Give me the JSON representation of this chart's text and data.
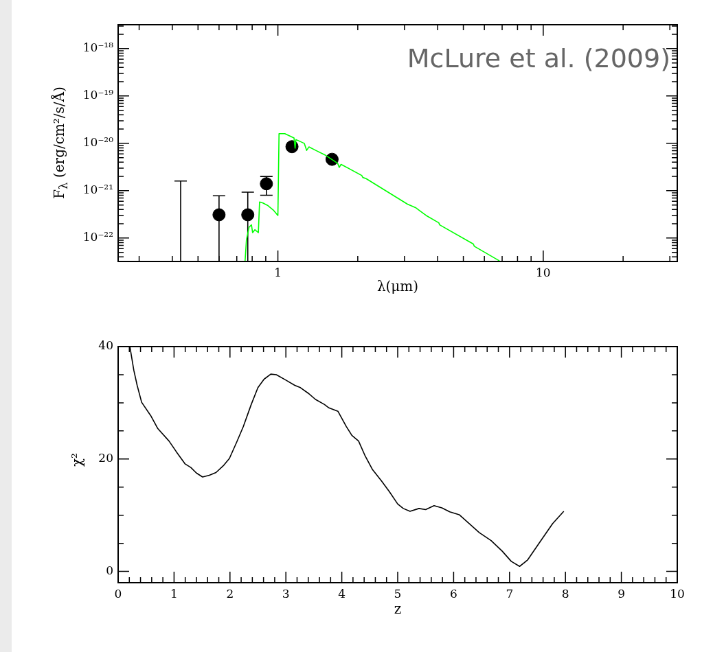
{
  "chart_data": [
    {
      "type": "scatter",
      "xlabel": "λ(μm)",
      "ylabel": "F$_{λ}$ (erg/cm²/s/Å)",
      "annotations": [
        "McLure et al. (2009)"
      ],
      "log": "xy",
      "grid": false,
      "legend": false,
      "xlim": [
        0.25,
        32
      ],
      "ylim": [
        3.2e-23,
        3.2e-18
      ],
      "xticks": [
        {
          "value": 0.3,
          "label": null
        },
        {
          "value": 0.4,
          "label": null
        },
        {
          "value": 0.5,
          "label": null
        },
        {
          "value": 0.6,
          "label": null
        },
        {
          "value": 0.7,
          "label": null
        },
        {
          "value": 0.8,
          "label": null
        },
        {
          "value": 0.9,
          "label": null
        },
        1,
        {
          "value": 2,
          "label": null
        },
        {
          "value": 3,
          "label": null
        },
        {
          "value": 4,
          "label": null
        },
        {
          "value": 5,
          "label": null
        },
        {
          "value": 6,
          "label": null
        },
        {
          "value": 7,
          "label": null
        },
        {
          "value": 8,
          "label": null
        },
        {
          "value": 9,
          "label": null
        },
        10,
        {
          "value": 20,
          "label": null
        },
        {
          "value": 30,
          "label": null
        }
      ],
      "yticks": [
        {
          "value": 4e-23,
          "label": null
        },
        {
          "value": 5e-23,
          "label": null
        },
        {
          "value": 6e-23,
          "label": null
        },
        {
          "value": 7e-23,
          "label": null
        },
        {
          "value": 8e-23,
          "label": null
        },
        {
          "value": 9e-23,
          "label": null
        },
        {
          "value": 1e-22,
          "label": "10⁻²²"
        },
        {
          "value": 2e-22,
          "label": null
        },
        {
          "value": 3e-22,
          "label": null
        },
        {
          "value": 4e-22,
          "label": null
        },
        {
          "value": 5e-22,
          "label": null
        },
        {
          "value": 6e-22,
          "label": null
        },
        {
          "value": 7e-22,
          "label": null
        },
        {
          "value": 8e-22,
          "label": null
        },
        {
          "value": 9e-22,
          "label": null
        },
        {
          "value": 1e-21,
          "label": "10⁻²¹"
        },
        {
          "value": 2e-21,
          "label": null
        },
        {
          "value": 3e-21,
          "label": null
        },
        {
          "value": 4e-21,
          "label": null
        },
        {
          "value": 5e-21,
          "label": null
        },
        {
          "value": 6e-21,
          "label": null
        },
        {
          "value": 7e-21,
          "label": null
        },
        {
          "value": 8e-21,
          "label": null
        },
        {
          "value": 9e-21,
          "label": null
        },
        {
          "value": 1e-20,
          "label": "10⁻²⁰"
        },
        {
          "value": 2e-20,
          "label": null
        },
        {
          "value": 3e-20,
          "label": null
        },
        {
          "value": 4e-20,
          "label": null
        },
        {
          "value": 5e-20,
          "label": null
        },
        {
          "value": 6e-20,
          "label": null
        },
        {
          "value": 7e-20,
          "label": null
        },
        {
          "value": 8e-20,
          "label": null
        },
        {
          "value": 9e-20,
          "label": null
        },
        {
          "value": 1e-19,
          "label": "10⁻¹⁹"
        },
        {
          "value": 2e-19,
          "label": null
        },
        {
          "value": 3e-19,
          "label": null
        },
        {
          "value": 4e-19,
          "label": null
        },
        {
          "value": 5e-19,
          "label": null
        },
        {
          "value": 6e-19,
          "label": null
        },
        {
          "value": 7e-19,
          "label": null
        },
        {
          "value": 8e-19,
          "label": null
        },
        {
          "value": 9e-19,
          "label": null
        },
        {
          "value": 1e-18,
          "label": "10⁻¹⁸"
        },
        {
          "value": 2e-18,
          "label": null
        },
        {
          "value": 3e-18,
          "label": null
        }
      ],
      "series": [
        {
          "type": "line",
          "color": "#00ff00",
          "marker": "none",
          "x": [
            0.752,
            0.761,
            0.779,
            0.795,
            0.803,
            0.819,
            0.844,
            0.853,
            0.878,
            0.914,
            0.961,
            1.0,
            1.01,
            1.062,
            1.15,
            1.161,
            1.17,
            1.257,
            1.283,
            1.309,
            1.389,
            1.504,
            1.679,
            1.703,
            1.73,
            2.07,
            2.09,
            2.15,
            3.08,
            3.3,
            3.44,
            3.62,
            4.04,
            4.07,
            5.45,
            5.5,
            6.84
          ],
          "values": [
            3.2e-23,
            9.1e-23,
            1.7e-22,
            1.9e-22,
            1.3e-22,
            1.5e-22,
            1.3e-22,
            5.8e-22,
            5.5e-22,
            4.9e-22,
            3.9e-22,
            3e-22,
            1.6e-20,
            1.6e-20,
            1.3e-20,
            7.9e-21,
            1.2e-20,
            1e-20,
            7.1e-21,
            8.4e-21,
            7.1e-21,
            5.7e-21,
            3.8e-21,
            3.1e-21,
            3.6e-21,
            2.1e-21,
            1.9e-21,
            1.8e-21,
            5.2e-22,
            4.4e-22,
            3.7e-22,
            3e-22,
            2.1e-22,
            1.9e-22,
            7.5e-23,
            6.7e-23,
            3.3e-23
          ]
        },
        {
          "type": "scatter",
          "color": "#000000",
          "marker": "circle",
          "x": [
            0.6,
            0.77,
            0.905,
            1.13,
            1.6
          ],
          "values": [
            3.1e-22,
            3.1e-22,
            1.4e-21,
            8.5e-21,
            4.6e-21
          ],
          "errors": [
            [
              3.2e-23,
              7.8e-22
            ],
            [
              3.2e-23,
              9.3e-22
            ],
            [
              8e-22,
              2e-21
            ],
            null,
            null
          ]
        },
        {
          "type": "line",
          "color": "#000000",
          "marker": "none",
          "x": [
            0.43,
            0.43
          ],
          "values": [
            3.2e-23,
            1.6e-21
          ],
          "errors": [
            null,
            [
              1.6e-21,
              1.6e-21
            ]
          ]
        }
      ]
    },
    {
      "type": "line",
      "xlabel": "z",
      "ylabel": "χ²",
      "grid": false,
      "legend": false,
      "marker": "none",
      "color": "#000000",
      "xlim": [
        0,
        10
      ],
      "ylim": [
        -2,
        40
      ],
      "xticks": [
        0,
        {
          "value": 0.2,
          "label": null
        },
        {
          "value": 0.4,
          "label": null
        },
        {
          "value": 0.6,
          "label": null
        },
        {
          "value": 0.8,
          "label": null
        },
        1,
        {
          "value": 1.2,
          "label": null
        },
        {
          "value": 1.4,
          "label": null
        },
        {
          "value": 1.6,
          "label": null
        },
        {
          "value": 1.8,
          "label": null
        },
        2,
        {
          "value": 2.2,
          "label": null
        },
        {
          "value": 2.4,
          "label": null
        },
        {
          "value": 2.6,
          "label": null
        },
        {
          "value": 2.8,
          "label": null
        },
        3,
        {
          "value": 3.2,
          "label": null
        },
        {
          "value": 3.4,
          "label": null
        },
        {
          "value": 3.6,
          "label": null
        },
        {
          "value": 3.8,
          "label": null
        },
        4,
        {
          "value": 4.2,
          "label": null
        },
        {
          "value": 4.4,
          "label": null
        },
        {
          "value": 4.6,
          "label": null
        },
        {
          "value": 4.8,
          "label": null
        },
        5,
        {
          "value": 5.2,
          "label": null
        },
        {
          "value": 5.4,
          "label": null
        },
        {
          "value": 5.6,
          "label": null
        },
        {
          "value": 5.8,
          "label": null
        },
        6,
        {
          "value": 6.2,
          "label": null
        },
        {
          "value": 6.4,
          "label": null
        },
        {
          "value": 6.6,
          "label": null
        },
        {
          "value": 6.8,
          "label": null
        },
        7,
        {
          "value": 7.2,
          "label": null
        },
        {
          "value": 7.4,
          "label": null
        },
        {
          "value": 7.6,
          "label": null
        },
        {
          "value": 7.8,
          "label": null
        },
        8,
        {
          "value": 8.2,
          "label": null
        },
        {
          "value": 8.4,
          "label": null
        },
        {
          "value": 8.6,
          "label": null
        },
        {
          "value": 8.8,
          "label": null
        },
        9,
        {
          "value": 9.2,
          "label": null
        },
        {
          "value": 9.4,
          "label": null
        },
        {
          "value": 9.6,
          "label": null
        },
        {
          "value": 9.8,
          "label": null
        },
        10
      ],
      "yticks": [
        0,
        {
          "value": 5,
          "label": null
        },
        {
          "value": 10,
          "label": null
        },
        {
          "value": 15,
          "label": null
        },
        20,
        {
          "value": 25,
          "label": null
        },
        {
          "value": 30,
          "label": null
        },
        {
          "value": 35,
          "label": null
        },
        40
      ],
      "x": [
        0.21,
        0.28,
        0.34,
        0.42,
        0.59,
        0.71,
        0.91,
        1.04,
        1.2,
        1.3,
        1.4,
        1.51,
        1.63,
        1.75,
        1.89,
        1.99,
        2.12,
        2.24,
        2.38,
        2.5,
        2.61,
        2.73,
        2.83,
        2.99,
        3.16,
        3.26,
        3.4,
        3.53,
        3.69,
        3.77,
        3.93,
        4.08,
        4.18,
        4.3,
        4.42,
        4.55,
        4.71,
        4.85,
        5.0,
        5.1,
        5.22,
        5.38,
        5.5,
        5.65,
        5.79,
        5.93,
        6.1,
        6.46,
        6.67,
        6.87,
        7.03,
        7.18,
        7.32,
        7.52,
        7.77,
        7.97
      ],
      "values": [
        40,
        35.8,
        33.1,
        30.1,
        27.6,
        25.4,
        23.2,
        21.3,
        19.1,
        18.5,
        17.5,
        16.8,
        17.1,
        17.6,
        18.9,
        20.1,
        23.0,
        25.8,
        29.7,
        32.7,
        34.2,
        35.1,
        35.0,
        34.1,
        33.1,
        32.7,
        31.7,
        30.6,
        29.7,
        29.1,
        28.5,
        25.8,
        24.2,
        23.2,
        20.5,
        18.1,
        16.1,
        14.2,
        12.0,
        11.2,
        10.7,
        11.2,
        11.0,
        11.7,
        11.3,
        10.6,
        10.1,
        6.9,
        5.5,
        3.6,
        1.8,
        0.9,
        2.0,
        4.9,
        8.5,
        10.7
      ]
    }
  ]
}
